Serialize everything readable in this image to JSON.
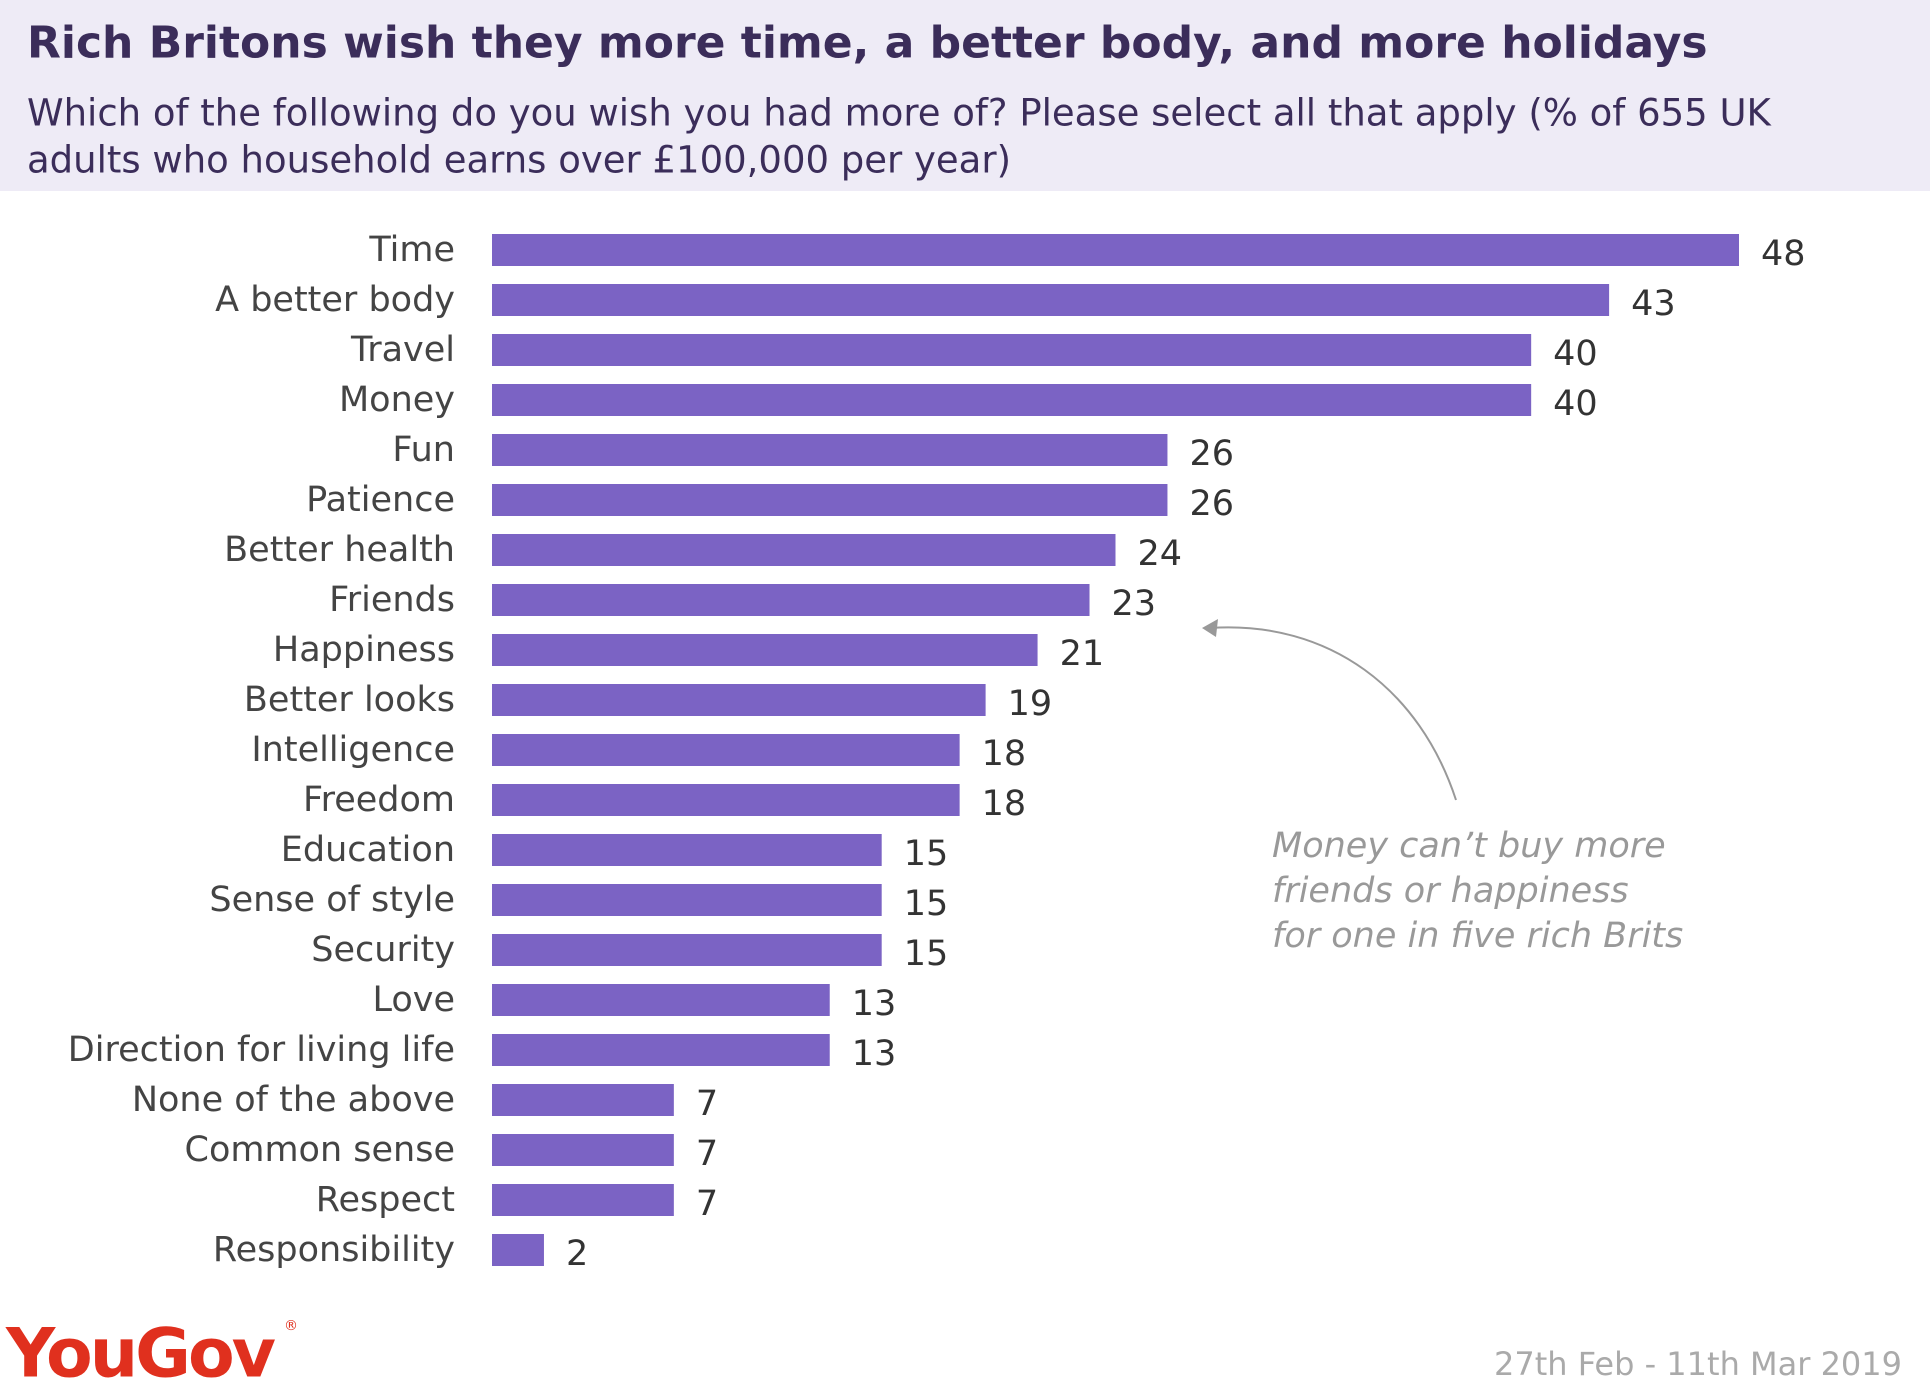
{
  "chart_data": {
    "type": "barh",
    "title": "Rich Britons wish they more time, a better body, and more holidays",
    "subtitle": [
      "Which of the following do you wish you had more of? Please select all that apply (% of 655 UK",
      "adults who household earns over £100,000  per year)"
    ],
    "categories": [
      "Time",
      "A better body",
      "Travel",
      "Money",
      "Fun",
      "Patience",
      "Better health",
      "Friends",
      "Happiness",
      "Better looks",
      "Intelligence",
      "Freedom",
      "Education",
      "Sense of style",
      "Security",
      "Love",
      "Direction for living life",
      "None of the above",
      "Common sense",
      "Respect",
      "Responsibility"
    ],
    "values": [
      48,
      43,
      40,
      40,
      26,
      26,
      24,
      23,
      21,
      19,
      18,
      18,
      15,
      15,
      15,
      13,
      13,
      7,
      7,
      7,
      2
    ],
    "color": "#7b63c4",
    "annotation": [
      "Money can’t buy more",
      "friends or happiness",
      "for one in five rich Brits"
    ]
  },
  "footer": {
    "logo": "YouGov",
    "logo_mark": "®",
    "date": "27th Feb - 11th Mar 2019"
  }
}
